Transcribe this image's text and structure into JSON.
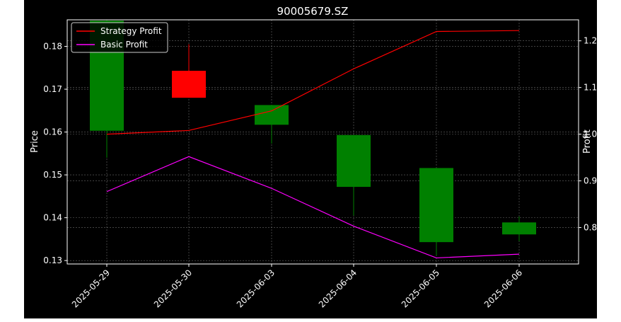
{
  "chart_data": {
    "type": "candlestick",
    "title": "90005679.SZ",
    "xlabel": "",
    "ylabel": "Price",
    "y2label": "Profit",
    "categories": [
      "2025-05-29",
      "2025-05-30",
      "2025-06-03",
      "2025-06-04",
      "2025-06-05",
      "2025-06-06"
    ],
    "price_ylim": [
      0.1292,
      0.1862
    ],
    "price_ticks": [
      "0.13",
      "0.14",
      "0.15",
      "0.16",
      "0.17",
      "0.18"
    ],
    "profit_ylim": [
      0.722,
      1.245
    ],
    "profit_ticks": [
      "0.8",
      "0.9",
      "1.0",
      "1.1",
      "1.2"
    ],
    "candles": [
      {
        "open": 0.186,
        "close": 0.1603,
        "high": 0.1862,
        "low": 0.154,
        "color": "#008000"
      },
      {
        "open": 0.168,
        "close": 0.1743,
        "high": 0.1805,
        "low": 0.168,
        "color": "#ff0000"
      },
      {
        "open": 0.1663,
        "close": 0.1617,
        "high": 0.1663,
        "low": 0.1573,
        "color": "#008000"
      },
      {
        "open": 0.1593,
        "close": 0.1472,
        "high": 0.1593,
        "low": 0.1405,
        "color": "#008000"
      },
      {
        "open": 0.1516,
        "close": 0.1343,
        "high": 0.1516,
        "low": 0.1313,
        "color": "#008000"
      },
      {
        "open": 0.1389,
        "close": 0.1361,
        "high": 0.1403,
        "low": 0.1345,
        "color": "#008000"
      }
    ],
    "series": [
      {
        "name": "Strategy Profit",
        "color": "#ff0000",
        "values": [
          1.0,
          1.008,
          1.05,
          1.14,
          1.22,
          1.222
        ]
      },
      {
        "name": "Basic Profit",
        "color": "#ff00ff",
        "values": [
          0.877,
          0.952,
          0.884,
          0.803,
          0.735,
          0.743
        ]
      }
    ],
    "grid": true,
    "legend_position": "top-left"
  }
}
